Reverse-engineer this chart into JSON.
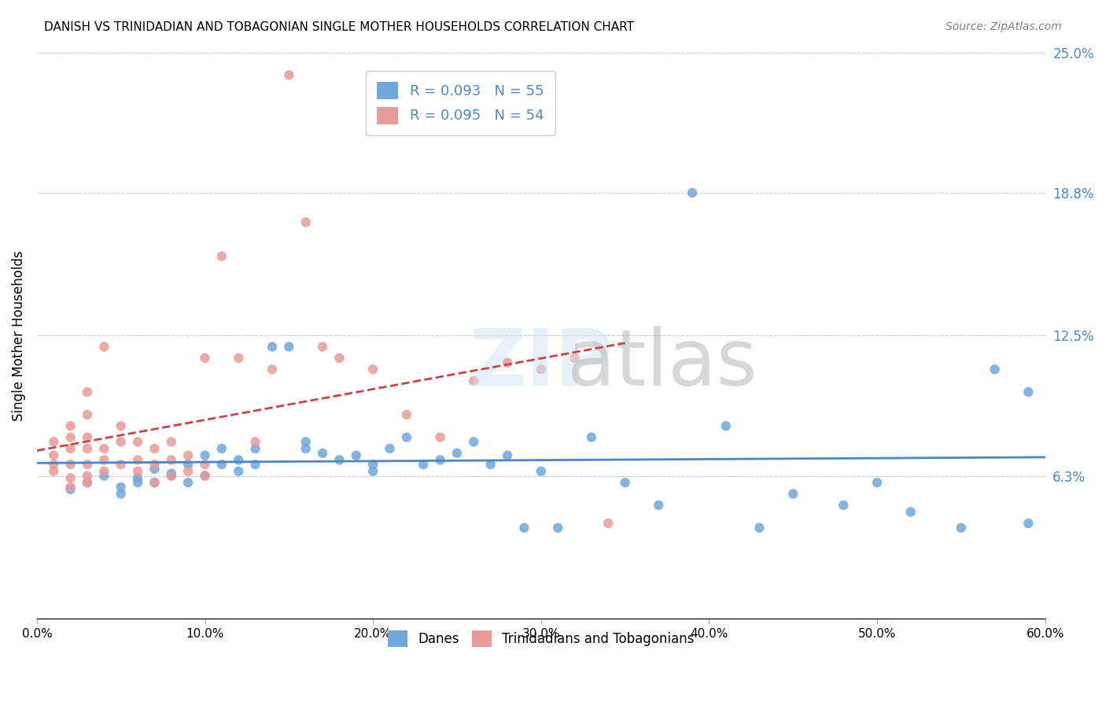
{
  "title": "DANISH VS TRINIDADIAN AND TOBAGONIAN SINGLE MOTHER HOUSEHOLDS CORRELATION CHART",
  "source": "Source: ZipAtlas.com",
  "xlabel": "",
  "ylabel": "Single Mother Households",
  "xlim": [
    0.0,
    0.6
  ],
  "ylim": [
    0.0,
    0.25
  ],
  "xticks": [
    0.0,
    0.1,
    0.2,
    0.3,
    0.4,
    0.5,
    0.6
  ],
  "xtick_labels": [
    "0.0%",
    "10.0%",
    "20.0%",
    "30.0%",
    "40.0%",
    "50.0%",
    "60.0%"
  ],
  "ytick_right_labels": [
    "6.3%",
    "12.5%",
    "18.8%",
    "25.0%"
  ],
  "ytick_right_vals": [
    0.063,
    0.125,
    0.188,
    0.25
  ],
  "blue_color": "#6fa8dc",
  "pink_color": "#ea9999",
  "blue_line_color": "#4a86c8",
  "pink_line_color": "#cc4444",
  "legend_R1": "R = 0.093",
  "legend_N1": "N = 55",
  "legend_R2": "R = 0.095",
  "legend_N2": "N = 54",
  "legend_label1": "Danes",
  "legend_label2": "Trinidadians and Tobagonians",
  "watermark": "ZIPatlas",
  "blue_scatter_x": [
    0.02,
    0.03,
    0.04,
    0.05,
    0.05,
    0.06,
    0.06,
    0.07,
    0.07,
    0.08,
    0.08,
    0.09,
    0.09,
    0.1,
    0.1,
    0.11,
    0.11,
    0.12,
    0.12,
    0.13,
    0.13,
    0.14,
    0.15,
    0.16,
    0.16,
    0.17,
    0.18,
    0.19,
    0.2,
    0.2,
    0.21,
    0.22,
    0.23,
    0.24,
    0.25,
    0.26,
    0.27,
    0.28,
    0.29,
    0.3,
    0.31,
    0.33,
    0.35,
    0.37,
    0.39,
    0.41,
    0.43,
    0.45,
    0.48,
    0.5,
    0.52,
    0.55,
    0.57,
    0.59,
    0.59
  ],
  "blue_scatter_y": [
    0.057,
    0.06,
    0.063,
    0.058,
    0.055,
    0.062,
    0.06,
    0.066,
    0.06,
    0.064,
    0.063,
    0.068,
    0.06,
    0.072,
    0.063,
    0.068,
    0.075,
    0.07,
    0.065,
    0.068,
    0.075,
    0.12,
    0.12,
    0.078,
    0.075,
    0.073,
    0.07,
    0.072,
    0.068,
    0.065,
    0.075,
    0.08,
    0.068,
    0.07,
    0.073,
    0.078,
    0.068,
    0.072,
    0.04,
    0.065,
    0.04,
    0.08,
    0.06,
    0.05,
    0.188,
    0.085,
    0.04,
    0.055,
    0.05,
    0.06,
    0.047,
    0.04,
    0.11,
    0.042,
    0.1
  ],
  "pink_scatter_x": [
    0.01,
    0.01,
    0.01,
    0.01,
    0.02,
    0.02,
    0.02,
    0.02,
    0.02,
    0.02,
    0.03,
    0.03,
    0.03,
    0.03,
    0.03,
    0.03,
    0.03,
    0.04,
    0.04,
    0.04,
    0.04,
    0.05,
    0.05,
    0.05,
    0.06,
    0.06,
    0.06,
    0.07,
    0.07,
    0.07,
    0.08,
    0.08,
    0.08,
    0.09,
    0.09,
    0.1,
    0.1,
    0.1,
    0.11,
    0.12,
    0.13,
    0.14,
    0.15,
    0.16,
    0.17,
    0.18,
    0.2,
    0.22,
    0.24,
    0.26,
    0.28,
    0.3,
    0.32,
    0.34
  ],
  "pink_scatter_y": [
    0.065,
    0.068,
    0.072,
    0.078,
    0.058,
    0.062,
    0.068,
    0.075,
    0.08,
    0.085,
    0.06,
    0.063,
    0.068,
    0.075,
    0.08,
    0.09,
    0.1,
    0.065,
    0.07,
    0.075,
    0.12,
    0.068,
    0.078,
    0.085,
    0.065,
    0.07,
    0.078,
    0.06,
    0.068,
    0.075,
    0.063,
    0.07,
    0.078,
    0.065,
    0.072,
    0.063,
    0.068,
    0.115,
    0.16,
    0.115,
    0.078,
    0.11,
    0.24,
    0.175,
    0.12,
    0.115,
    0.11,
    0.09,
    0.08,
    0.105,
    0.113,
    0.11,
    0.115,
    0.042
  ]
}
